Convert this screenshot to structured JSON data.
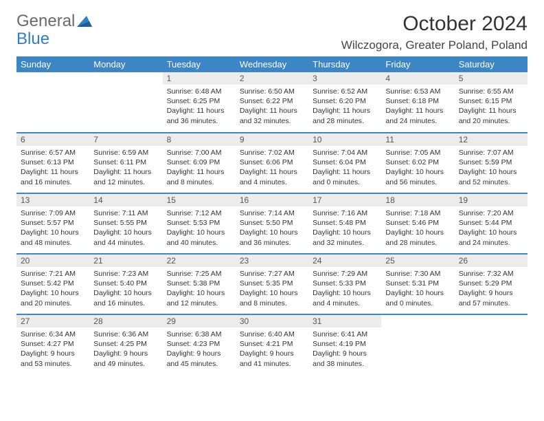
{
  "logo": {
    "line1": "General",
    "line2": "Blue"
  },
  "title": "October 2024",
  "location": "Wilczogora, Greater Poland, Poland",
  "header_bg": "#3d86c6",
  "daynum_bg": "#ececec",
  "weekdays": [
    "Sunday",
    "Monday",
    "Tuesday",
    "Wednesday",
    "Thursday",
    "Friday",
    "Saturday"
  ],
  "weeks": [
    [
      {
        "n": "",
        "empty": true
      },
      {
        "n": "",
        "empty": true
      },
      {
        "n": "1",
        "sr": "6:48 AM",
        "ss": "6:25 PM",
        "dl": "11 hours and 36 minutes."
      },
      {
        "n": "2",
        "sr": "6:50 AM",
        "ss": "6:22 PM",
        "dl": "11 hours and 32 minutes."
      },
      {
        "n": "3",
        "sr": "6:52 AM",
        "ss": "6:20 PM",
        "dl": "11 hours and 28 minutes."
      },
      {
        "n": "4",
        "sr": "6:53 AM",
        "ss": "6:18 PM",
        "dl": "11 hours and 24 minutes."
      },
      {
        "n": "5",
        "sr": "6:55 AM",
        "ss": "6:15 PM",
        "dl": "11 hours and 20 minutes."
      }
    ],
    [
      {
        "n": "6",
        "sr": "6:57 AM",
        "ss": "6:13 PM",
        "dl": "11 hours and 16 minutes."
      },
      {
        "n": "7",
        "sr": "6:59 AM",
        "ss": "6:11 PM",
        "dl": "11 hours and 12 minutes."
      },
      {
        "n": "8",
        "sr": "7:00 AM",
        "ss": "6:09 PM",
        "dl": "11 hours and 8 minutes."
      },
      {
        "n": "9",
        "sr": "7:02 AM",
        "ss": "6:06 PM",
        "dl": "11 hours and 4 minutes."
      },
      {
        "n": "10",
        "sr": "7:04 AM",
        "ss": "6:04 PM",
        "dl": "11 hours and 0 minutes."
      },
      {
        "n": "11",
        "sr": "7:05 AM",
        "ss": "6:02 PM",
        "dl": "10 hours and 56 minutes."
      },
      {
        "n": "12",
        "sr": "7:07 AM",
        "ss": "5:59 PM",
        "dl": "10 hours and 52 minutes."
      }
    ],
    [
      {
        "n": "13",
        "sr": "7:09 AM",
        "ss": "5:57 PM",
        "dl": "10 hours and 48 minutes."
      },
      {
        "n": "14",
        "sr": "7:11 AM",
        "ss": "5:55 PM",
        "dl": "10 hours and 44 minutes."
      },
      {
        "n": "15",
        "sr": "7:12 AM",
        "ss": "5:53 PM",
        "dl": "10 hours and 40 minutes."
      },
      {
        "n": "16",
        "sr": "7:14 AM",
        "ss": "5:50 PM",
        "dl": "10 hours and 36 minutes."
      },
      {
        "n": "17",
        "sr": "7:16 AM",
        "ss": "5:48 PM",
        "dl": "10 hours and 32 minutes."
      },
      {
        "n": "18",
        "sr": "7:18 AM",
        "ss": "5:46 PM",
        "dl": "10 hours and 28 minutes."
      },
      {
        "n": "19",
        "sr": "7:20 AM",
        "ss": "5:44 PM",
        "dl": "10 hours and 24 minutes."
      }
    ],
    [
      {
        "n": "20",
        "sr": "7:21 AM",
        "ss": "5:42 PM",
        "dl": "10 hours and 20 minutes."
      },
      {
        "n": "21",
        "sr": "7:23 AM",
        "ss": "5:40 PM",
        "dl": "10 hours and 16 minutes."
      },
      {
        "n": "22",
        "sr": "7:25 AM",
        "ss": "5:38 PM",
        "dl": "10 hours and 12 minutes."
      },
      {
        "n": "23",
        "sr": "7:27 AM",
        "ss": "5:35 PM",
        "dl": "10 hours and 8 minutes."
      },
      {
        "n": "24",
        "sr": "7:29 AM",
        "ss": "5:33 PM",
        "dl": "10 hours and 4 minutes."
      },
      {
        "n": "25",
        "sr": "7:30 AM",
        "ss": "5:31 PM",
        "dl": "10 hours and 0 minutes."
      },
      {
        "n": "26",
        "sr": "7:32 AM",
        "ss": "5:29 PM",
        "dl": "9 hours and 57 minutes."
      }
    ],
    [
      {
        "n": "27",
        "sr": "6:34 AM",
        "ss": "4:27 PM",
        "dl": "9 hours and 53 minutes."
      },
      {
        "n": "28",
        "sr": "6:36 AM",
        "ss": "4:25 PM",
        "dl": "9 hours and 49 minutes."
      },
      {
        "n": "29",
        "sr": "6:38 AM",
        "ss": "4:23 PM",
        "dl": "9 hours and 45 minutes."
      },
      {
        "n": "30",
        "sr": "6:40 AM",
        "ss": "4:21 PM",
        "dl": "9 hours and 41 minutes."
      },
      {
        "n": "31",
        "sr": "6:41 AM",
        "ss": "4:19 PM",
        "dl": "9 hours and 38 minutes."
      },
      {
        "n": "",
        "empty": true
      },
      {
        "n": "",
        "empty": true
      }
    ]
  ],
  "labels": {
    "sunrise": "Sunrise:",
    "sunset": "Sunset:",
    "daylight": "Daylight:"
  }
}
